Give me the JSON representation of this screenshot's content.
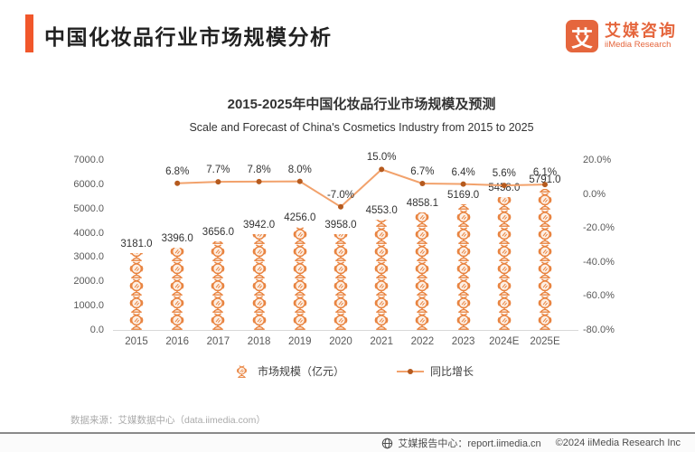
{
  "header": {
    "title": "中国化妆品行业市场规模分析",
    "logo": {
      "symbol": "艾",
      "name_cn": "艾媒咨询",
      "name_en": "iiMedia Research"
    }
  },
  "chart_data": {
    "type": "bar",
    "subtype": "pictogram-bar with overlaid growth line",
    "title": "2015-2025年中国化妆品行业市场规模及预测",
    "subtitle": "Scale and Forecast of China's Cosmetics Industry from 2015 to 2025",
    "categories": [
      "2015",
      "2016",
      "2017",
      "2018",
      "2019",
      "2020",
      "2021",
      "2022",
      "2023",
      "2024E",
      "2025E"
    ],
    "series": [
      {
        "name": "市场规模（亿元）",
        "type": "pictogram-bar",
        "axis": "left",
        "values": [
          3181.0,
          3396.0,
          3656.0,
          3942.0,
          4256.0,
          3958.0,
          4553.0,
          4858.1,
          5169.0,
          5458.0,
          5791.0
        ],
        "labels": [
          "3181.0",
          "3396.0",
          "3656.0",
          "3942.0",
          "4256.0",
          "3958.0",
          "4553.0",
          "4858.1",
          "5169.0",
          "5458.0",
          "5791.0"
        ]
      },
      {
        "name": "同比增长",
        "type": "line",
        "axis": "right",
        "values": [
          null,
          6.8,
          7.7,
          7.8,
          8.0,
          -7.0,
          15.0,
          6.7,
          6.4,
          5.6,
          6.1
        ],
        "labels": [
          null,
          "6.8%",
          "7.7%",
          "7.8%",
          "8.0%",
          "-7.0%",
          "15.0%",
          "6.7%",
          "6.4%",
          "5.6%",
          "6.1%"
        ]
      }
    ],
    "left_axis": {
      "min": 0,
      "max": 7000,
      "ticks": [
        "7000.0",
        "6000.0",
        "5000.0",
        "4000.0",
        "3000.0",
        "2000.0",
        "1000.0",
        "0.0"
      ]
    },
    "right_axis": {
      "min": -80,
      "max": 20,
      "ticks": [
        "20.0%",
        "0.0%",
        "-20.0%",
        "-40.0%",
        "-60.0%",
        "-80.0%"
      ]
    },
    "grid": false,
    "legend_position": "bottom",
    "colors": {
      "accent": "#F1572B",
      "bar_icon": "#E8823E",
      "bar_icon_fill": "#FDEFE4",
      "line": "#F2A26C",
      "marker": "#B55A1E",
      "label_text": "#333333",
      "axis_text": "#595959"
    }
  },
  "source": "数据来源：艾媒数据中心（data.iimedia.com）",
  "footer": {
    "report_center": "艾媒报告中心：report.iimedia.cn",
    "copyright": "©2024  iiMedia Research Inc"
  }
}
